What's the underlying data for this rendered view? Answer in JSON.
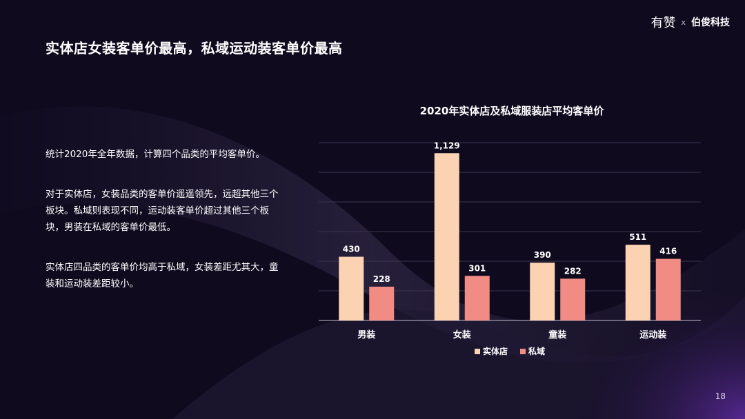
{
  "brand": {
    "logo_a": "有赞",
    "separator": "x",
    "logo_b": "伯俊科技"
  },
  "slide_title": "实体店女装客单价最高，私域运动装客单价最高",
  "body_paragraphs": [
    "统计2020年全年数据，计算四个品类的平均客单价。",
    "对于实体店，女装品类的客单价遥遥领先，远超其他三个板块。私域则表现不同，运动装客单价超过其他三个板块，男装在私域的客单价最低。",
    "实体店四品类的客单价均高于私域，女装差距尤其大，童装和运动装差距较小。"
  ],
  "page_number": "18",
  "chart_data": {
    "type": "bar",
    "title": "2020年实体店及私域服装店平均客单价",
    "categories": [
      "男装",
      "女装",
      "童装",
      "运动装"
    ],
    "series": [
      {
        "name": "实体店",
        "values": [
          430,
          1129,
          390,
          511
        ],
        "labels": [
          "430",
          "1,129",
          "390",
          "511"
        ],
        "color": "#fbd3b3"
      },
      {
        "name": "私域",
        "values": [
          228,
          301,
          282,
          416
        ],
        "labels": [
          "228",
          "301",
          "282",
          "416"
        ],
        "color": "#f08c84"
      }
    ],
    "ylim": [
      0,
      1200
    ],
    "grid": true,
    "legend": "bottom"
  }
}
